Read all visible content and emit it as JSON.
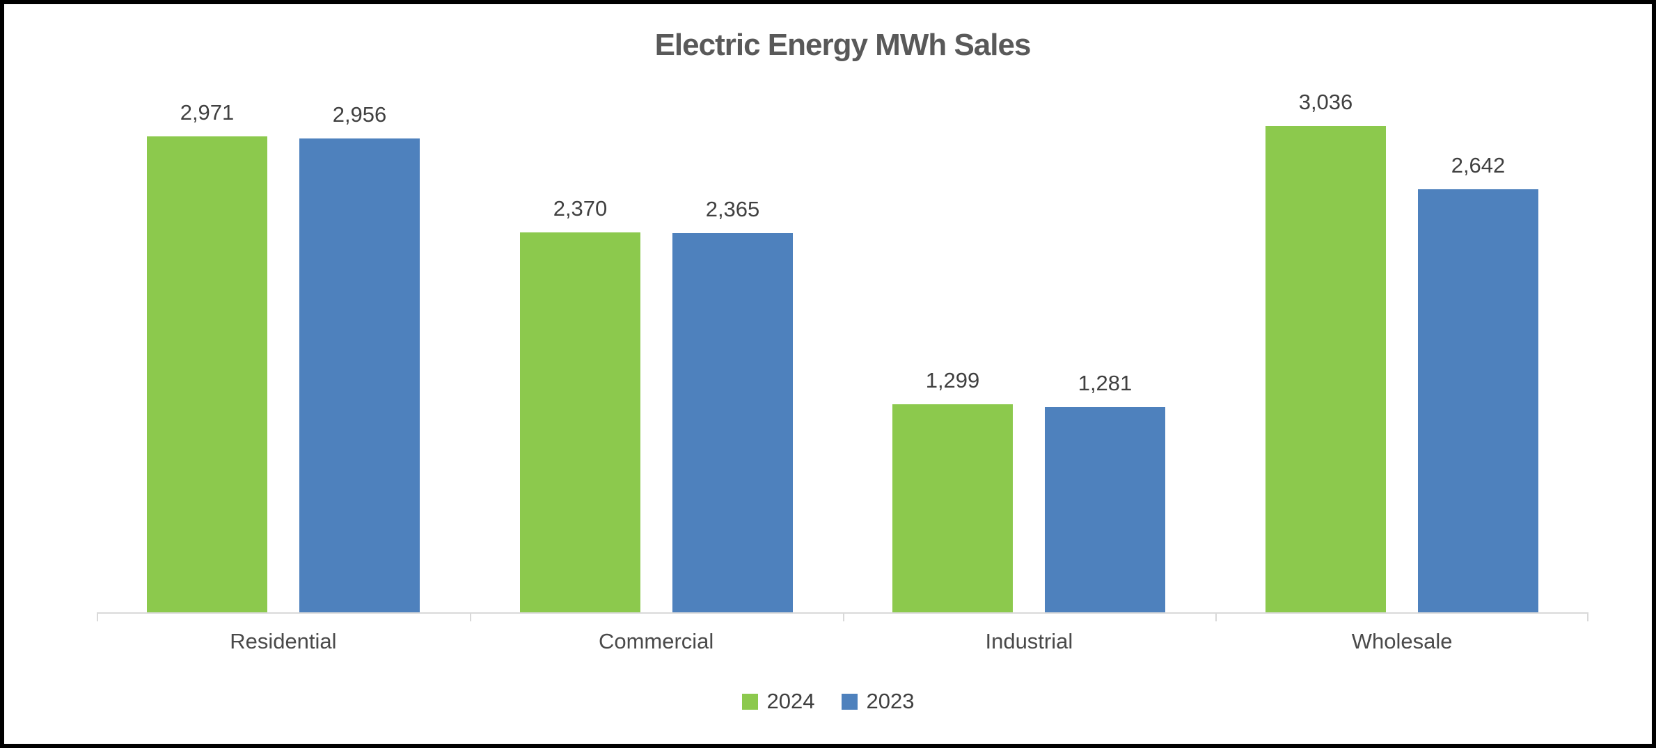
{
  "frame": {
    "background": "#ffffff",
    "border_color": "#000000"
  },
  "colors": {
    "title_text": "#595959",
    "label_text": "#404040",
    "axis_line": "#d9d9d9",
    "series_2024": "#8cc94d",
    "series_2023": "#4e81bd"
  },
  "chart_data": {
    "type": "bar",
    "title": "Electric Energy MWh Sales",
    "categories": [
      "Residential",
      "Commercial",
      "Industrial",
      "Wholesale"
    ],
    "series": [
      {
        "name": "2024",
        "color": "#8cc94d",
        "values": [
          2971,
          2370,
          1299,
          3036
        ],
        "labels": [
          "2,971",
          "2,370",
          "1,299",
          "3,036"
        ]
      },
      {
        "name": "2023",
        "color": "#4e81bd",
        "values": [
          2956,
          2365,
          1281,
          2642
        ],
        "labels": [
          "2,956",
          "2,365",
          "1,281",
          "2,642"
        ]
      }
    ],
    "xlabel": "",
    "ylabel": "",
    "ylim": [
      0,
      3500
    ],
    "grid": false,
    "y_axis_visible": false,
    "data_labels": true,
    "legend_position": "bottom",
    "legend_entries": [
      "2024",
      "2023"
    ]
  }
}
